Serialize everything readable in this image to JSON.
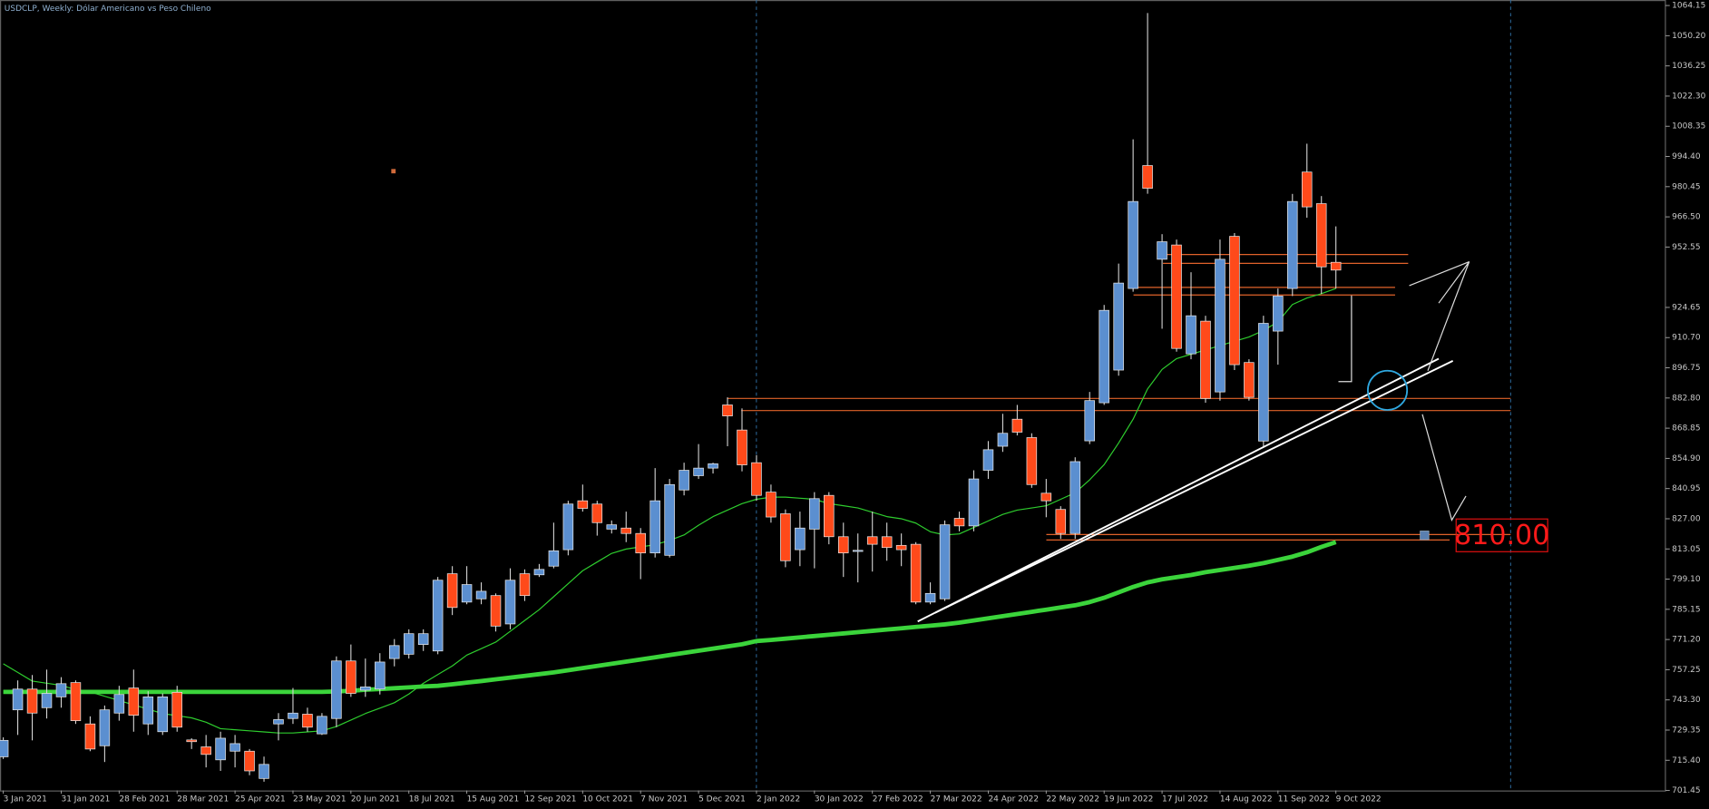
{
  "chart_data": {
    "type": "candlestick",
    "title": "USDCLP, Weekly:  Dólar Americano vs Peso Chileno",
    "categories": [
      "3 Jan 2021",
      null,
      null,
      null,
      "31 Jan 2021",
      null,
      null,
      null,
      "28 Feb 2021",
      null,
      null,
      null,
      "28 Mar 2021",
      null,
      null,
      null,
      "25 Apr 2021",
      null,
      null,
      null,
      "23 May 2021",
      null,
      null,
      null,
      "20 Jun 2021",
      null,
      null,
      null,
      "18 Jul 2021",
      null,
      null,
      null,
      "15 Aug 2021",
      null,
      null,
      null,
      "12 Sep 2021",
      null,
      null,
      null,
      "10 Oct 2021",
      null,
      null,
      null,
      "7 Nov 2021",
      null,
      null,
      null,
      "5 Dec 2021",
      null,
      null,
      null,
      "2 Jan 2022",
      null,
      null,
      null,
      "30 Jan 2022",
      null,
      null,
      null,
      "27 Feb 2022",
      null,
      null,
      null,
      "27 Mar 2022",
      null,
      null,
      null,
      "24 Apr 2022",
      null,
      null,
      null,
      "22 May 2022",
      null,
      null,
      null,
      "19 Jun 2022",
      null,
      null,
      null,
      "17 Jul 2022",
      null,
      null,
      null,
      "14 Aug 2022",
      null,
      null,
      null,
      "11 Sep 2022",
      null,
      null,
      null,
      "9 Oct 2022"
    ],
    "open": [
      717,
      738.7,
      748.3,
      739.7,
      744.7,
      751.3,
      732.2,
      722.1,
      737.2,
      748.8,
      732.2,
      728.6,
      746.8,
      724.8,
      721.6,
      715.6,
      719.6,
      719.6,
      707.0,
      732.2,
      734.7,
      736.7,
      727.6,
      734.7,
      761.3,
      747.8,
      748.3,
      762.4,
      764.4,
      768.9,
      765.9,
      801.6,
      788.5,
      790.0,
      791.5,
      778.4,
      801.6,
      801.1,
      805.1,
      812.7,
      835.3,
      833.8,
      822.2,
      822.7,
      820.2,
      811.2,
      810.1,
      840.3,
      846.9,
      850.4,
      879.6,
      868.0,
      852.9,
      839.3,
      829.3,
      812.7,
      822.2,
      837.8,
      818.7,
      812.0,
      818.7,
      818.7,
      814.7,
      815.2,
      788.5,
      790.0,
      827.2,
      823.7,
      849.4,
      860.5,
      873.0,
      864.5,
      838.8,
      831.3,
      820.2,
      863.0,
      880.6,
      895.7,
      933.4,
      990.2,
      946.9,
      953.5,
      903.2,
      918.3,
      885.6,
      957.5,
      899.2,
      862.9,
      913.7,
      933.4,
      987.2,
      972.6,
      945.5
    ],
    "high": [
      726,
      752.3,
      754.8,
      757.3,
      753.8,
      752.3,
      735.7,
      740.7,
      749.8,
      757.3,
      747.3,
      746.3,
      749.8,
      725.6,
      727.1,
      728.6,
      727.1,
      720.6,
      717.1,
      737.2,
      748.8,
      739.7,
      737.2,
      763.4,
      768.9,
      762.4,
      764.9,
      771.4,
      775.9,
      775.9,
      800.1,
      805.1,
      805.1,
      797.6,
      792.5,
      804.1,
      803.6,
      806.1,
      825.2,
      835.3,
      842.8,
      835.3,
      826.2,
      830.3,
      822.7,
      850.4,
      845.4,
      852.9,
      861.5,
      852.9,
      883.1,
      878.0,
      856.4,
      842.8,
      831.3,
      830.3,
      839.3,
      839.3,
      825.2,
      820.2,
      830.3,
      825.2,
      820.2,
      816.2,
      797.6,
      826.2,
      830.3,
      849.4,
      862.9,
      875.5,
      879.6,
      866.5,
      845.4,
      832.8,
      855.4,
      885.6,
      925.8,
      944.9,
      1002.3,
      1060.7,
      958.5,
      956.0,
      940.9,
      920.8,
      956.0,
      959.0,
      900.7,
      920.8,
      933.4,
      977.1,
      1000.3,
      976.1,
      962.1
    ],
    "low": [
      716,
      727.1,
      724.6,
      734.7,
      739.7,
      732.2,
      719.6,
      714.6,
      733.7,
      728.6,
      727.1,
      727.1,
      728.6,
      720.6,
      712.1,
      710.5,
      712.1,
      708.5,
      705.5,
      724.6,
      732.2,
      728.6,
      727.1,
      730.7,
      744.7,
      744.7,
      745.8,
      758.8,
      762.4,
      765.9,
      764.4,
      782.5,
      787.5,
      787.5,
      774.9,
      775.9,
      789.0,
      800.1,
      804.1,
      810.1,
      830.3,
      819.2,
      820.2,
      816.2,
      799.1,
      809.1,
      809.1,
      837.8,
      845.4,
      847.9,
      860.5,
      848.9,
      835.3,
      825.2,
      804.6,
      805.1,
      804.1,
      815.2,
      800.1,
      797.6,
      802.6,
      807.6,
      805.1,
      787.5,
      787.5,
      789.0,
      821.2,
      821.2,
      845.4,
      857.9,
      865.5,
      841.3,
      827.7,
      817.7,
      817.7,
      861.5,
      879.6,
      893.1,
      931.9,
      977.2,
      914.8,
      904.2,
      900.7,
      880.6,
      881.6,
      895.7,
      881.6,
      860.4,
      898.2,
      929.9,
      966.1,
      930.9,
      933.4
    ],
    "close": [
      724.6,
      748.3,
      737.2,
      746.3,
      750.8,
      733.7,
      720.6,
      738.7,
      745.8,
      736.2,
      744.7,
      744.7,
      730.7,
      724.0,
      718.1,
      725.6,
      723.1,
      710.5,
      713.5,
      734.2,
      737.2,
      730.7,
      735.7,
      761.3,
      746.3,
      749.3,
      760.8,
      768.4,
      773.9,
      773.9,
      798.6,
      786.0,
      796.6,
      793.5,
      777.4,
      798.6,
      791.5,
      803.6,
      812.2,
      833.8,
      831.8,
      825.2,
      824.2,
      820.2,
      811.2,
      835.3,
      842.8,
      849.4,
      850.4,
      852.4,
      874.5,
      851.9,
      837.8,
      827.8,
      807.6,
      822.7,
      836.3,
      818.7,
      811.2,
      812.4,
      815.2,
      813.7,
      812.7,
      788.5,
      792.5,
      824.2,
      823.7,
      845.4,
      858.9,
      866.5,
      867.0,
      842.8,
      835.3,
      820.2,
      853.4,
      881.6,
      923.3,
      935.9,
      973.6,
      979.7,
      955.0,
      905.7,
      920.8,
      882.6,
      946.9,
      898.2,
      883.1,
      917.3,
      929.9,
      973.6,
      971.1,
      943.4,
      941.9
    ],
    "up_color": "#5b8fd0",
    "down_color": "#ff4a1a",
    "overlays": [
      {
        "color": "#2ecc2e",
        "width": 1,
        "values": [
          760,
          756,
          752,
          751,
          750,
          748,
          747,
          745,
          743,
          741,
          739,
          737,
          736,
          735,
          733,
          730,
          729.5,
          729,
          728.5,
          728,
          728,
          728.5,
          729,
          731,
          734,
          737,
          739.5,
          742,
          746,
          751,
          755,
          759,
          764,
          767,
          770,
          775,
          780,
          785,
          791,
          797,
          803,
          807,
          811,
          813,
          814,
          815,
          817,
          819.5,
          824,
          828,
          831,
          834,
          836,
          837,
          837,
          836.5,
          836,
          834,
          833,
          832,
          830,
          828,
          827,
          825,
          821,
          819.5,
          820,
          823,
          826,
          829,
          831,
          832,
          833,
          836,
          839,
          845,
          852,
          862,
          873,
          887,
          896,
          901,
          903,
          905,
          907,
          909,
          911,
          914,
          918,
          926,
          929,
          931,
          933.4
        ]
      },
      {
        "color": "#3bd43b",
        "width": 4,
        "values": [
          747,
          747,
          747,
          747,
          747,
          747,
          747,
          747,
          747,
          747,
          747,
          747,
          747,
          747,
          747,
          747,
          747,
          747,
          747,
          747,
          747,
          747,
          747,
          747.2,
          747.5,
          748,
          748.3,
          748.7,
          749.1,
          749.5,
          749.8,
          750.5,
          751.3,
          752,
          752.8,
          753.6,
          754.4,
          755.2,
          756,
          757,
          758,
          759,
          760,
          761,
          762,
          763,
          764,
          765,
          766,
          767,
          768,
          769,
          770.5,
          771,
          771.6,
          772.2,
          772.8,
          773.4,
          774,
          774.6,
          775.2,
          775.8,
          776.4,
          777,
          777.6,
          778.2,
          779,
          780,
          781,
          782,
          783,
          784,
          785,
          786,
          787,
          788.5,
          790.5,
          793,
          795.5,
          797.6,
          799,
          800,
          801,
          802.3,
          803.3,
          804.3,
          805.3,
          806.5,
          808,
          809.5,
          811.5,
          814,
          816.2
        ]
      }
    ],
    "levels": [
      882.6,
      877.0,
      949.1,
      945.0,
      933.9,
      930.4,
      819.7,
      817.2
    ],
    "level_color": "#e0622a",
    "annotation": "810.00",
    "ylim": [
      701.45,
      1066.7
    ],
    "yticks": [
      1064.15,
      {
        "value": 1050.2,
        "label": "1050.20"
      },
      1036.25,
      {
        "value": 1022.3,
        "label": "1022.30"
      },
      1008.35,
      {
        "value": 994.4,
        "label": "994.40"
      },
      980.45,
      {
        "value": 966.5,
        "label": "966.50"
      },
      952.55,
      924.65,
      {
        "value": 910.7,
        "label": "910.70"
      },
      896.75,
      {
        "value": 882.8,
        "label": "882.80"
      },
      868.85,
      {
        "value": 854.9,
        "label": "854.90"
      },
      840.95,
      {
        "value": 827,
        "label": "827.00"
      },
      813.05,
      {
        "value": 799.1,
        "label": "799.10"
      },
      785.15,
      {
        "value": 771.2,
        "label": "771.20"
      },
      757.25,
      {
        "value": 743.3,
        "label": "743.30"
      },
      729.35,
      {
        "value": 715.4,
        "label": "715.40"
      },
      701.45
    ]
  }
}
